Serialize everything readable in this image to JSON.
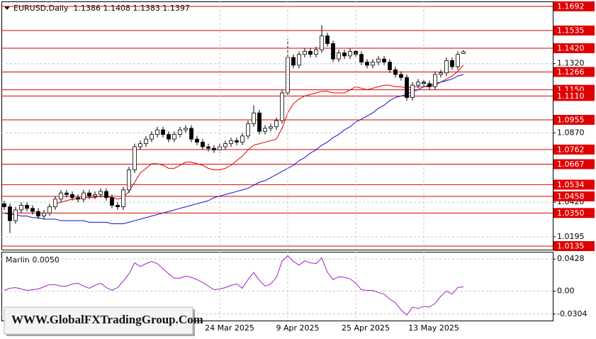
{
  "watermark": "WWW.GlobalFXTradingGroup.Com",
  "chart_data": [
    {
      "type": "candlestick",
      "title": "EURUSD,Daily  1.1386 1.1408 1.1383 1.1397",
      "open": [
        1.041,
        1.039,
        1.03,
        1.037,
        1.04,
        1.038,
        1.036,
        1.033,
        1.035,
        1.039,
        1.044,
        1.048,
        1.047,
        1.045,
        1.044,
        1.048,
        1.046,
        1.047,
        1.049,
        1.045,
        1.04,
        1.039,
        1.05,
        1.063,
        1.078,
        1.08,
        1.083,
        1.086,
        1.089,
        1.086,
        1.083,
        1.086,
        1.089,
        1.09,
        1.083,
        1.081,
        1.078,
        1.077,
        1.076,
        1.078,
        1.08,
        1.082,
        1.081,
        1.085,
        1.093,
        1.1,
        1.088,
        1.09,
        1.091,
        1.095,
        1.113,
        1.136,
        1.131,
        1.138,
        1.14,
        1.138,
        1.141,
        1.15,
        1.145,
        1.135,
        1.139,
        1.137,
        1.14,
        1.138,
        1.133,
        1.131,
        1.133,
        1.135,
        1.133,
        1.128,
        1.125,
        1.123,
        1.11,
        1.118,
        1.12,
        1.119,
        1.117,
        1.125,
        1.126,
        1.134,
        1.13,
        1.1386
      ],
      "high": [
        1.043,
        1.041,
        1.039,
        1.042,
        1.042,
        1.04,
        1.038,
        1.037,
        1.041,
        1.046,
        1.05,
        1.05,
        1.049,
        1.047,
        1.05,
        1.05,
        1.049,
        1.051,
        1.051,
        1.047,
        1.042,
        1.052,
        1.065,
        1.08,
        1.082,
        1.085,
        1.088,
        1.091,
        1.091,
        1.088,
        1.088,
        1.091,
        1.092,
        1.092,
        1.085,
        1.083,
        1.08,
        1.079,
        1.08,
        1.082,
        1.084,
        1.084,
        1.087,
        1.095,
        1.105,
        1.102,
        1.092,
        1.093,
        1.097,
        1.115,
        1.148,
        1.138,
        1.14,
        1.142,
        1.142,
        1.143,
        1.157,
        1.152,
        1.147,
        1.141,
        1.141,
        1.142,
        1.142,
        1.14,
        1.135,
        1.135,
        1.137,
        1.137,
        1.135,
        1.13,
        1.127,
        1.125,
        1.12,
        1.122,
        1.122,
        1.121,
        1.127,
        1.128,
        1.136,
        1.136,
        1.14,
        1.1408
      ],
      "low": [
        1.037,
        1.022,
        1.028,
        1.035,
        1.036,
        1.034,
        1.031,
        1.031,
        1.033,
        1.037,
        1.042,
        1.045,
        1.043,
        1.042,
        1.042,
        1.044,
        1.044,
        1.045,
        1.043,
        1.038,
        1.037,
        1.037,
        1.048,
        1.061,
        1.076,
        1.078,
        1.081,
        1.084,
        1.084,
        1.081,
        1.081,
        1.084,
        1.087,
        1.081,
        1.079,
        1.076,
        1.075,
        1.074,
        1.074,
        1.076,
        1.078,
        1.079,
        1.079,
        1.083,
        1.091,
        1.086,
        1.086,
        1.088,
        1.089,
        1.093,
        1.111,
        1.129,
        1.129,
        1.136,
        1.136,
        1.136,
        1.139,
        1.143,
        1.133,
        1.133,
        1.135,
        1.135,
        1.136,
        1.131,
        1.129,
        1.129,
        1.131,
        1.131,
        1.126,
        1.123,
        1.121,
        1.108,
        1.108,
        1.116,
        1.117,
        1.115,
        1.115,
        1.123,
        1.124,
        1.128,
        1.128,
        1.1383
      ],
      "close": [
        1.039,
        1.03,
        1.037,
        1.04,
        1.038,
        1.036,
        1.033,
        1.035,
        1.039,
        1.044,
        1.048,
        1.047,
        1.045,
        1.044,
        1.048,
        1.046,
        1.047,
        1.049,
        1.045,
        1.04,
        1.039,
        1.05,
        1.063,
        1.078,
        1.08,
        1.083,
        1.086,
        1.089,
        1.086,
        1.083,
        1.086,
        1.089,
        1.09,
        1.083,
        1.081,
        1.078,
        1.077,
        1.076,
        1.078,
        1.08,
        1.082,
        1.081,
        1.085,
        1.093,
        1.1,
        1.088,
        1.09,
        1.091,
        1.095,
        1.113,
        1.136,
        1.131,
        1.138,
        1.14,
        1.138,
        1.141,
        1.15,
        1.145,
        1.135,
        1.139,
        1.137,
        1.14,
        1.138,
        1.133,
        1.131,
        1.133,
        1.135,
        1.133,
        1.128,
        1.125,
        1.123,
        1.11,
        1.118,
        1.12,
        1.119,
        1.117,
        1.125,
        1.126,
        1.134,
        1.13,
        1.138,
        1.1397
      ],
      "up_color": "#ffffff",
      "down_color": "#000000",
      "series": [
        {
          "color": "#e00000",
          "values": [
            null,
            null,
            null,
            null,
            null,
            null,
            null,
            null,
            null,
            1.041,
            1.042,
            1.043,
            1.044,
            1.044,
            1.045,
            1.045,
            1.045,
            1.046,
            1.046,
            1.045,
            1.044,
            1.045,
            1.049,
            1.055,
            1.061,
            1.064,
            1.067,
            1.067,
            1.066,
            1.064,
            1.064,
            1.066,
            1.068,
            1.068,
            1.067,
            1.066,
            1.064,
            1.063,
            1.063,
            1.064,
            1.066,
            1.069,
            1.072,
            1.076,
            1.079,
            1.08,
            1.081,
            1.082,
            1.083,
            1.09,
            1.1,
            1.106,
            1.109,
            1.111,
            1.112,
            1.113,
            1.114,
            1.114,
            1.113,
            1.113,
            1.113,
            1.115,
            1.117,
            1.116,
            1.115,
            1.116,
            1.117,
            1.118,
            1.118,
            1.117,
            1.117,
            1.116,
            1.117,
            1.117,
            1.117,
            1.117,
            1.118,
            1.12,
            1.122,
            1.124,
            1.127,
            1.131
          ]
        },
        {
          "color": "#1010c8",
          "values": [
            1.035,
            1.034,
            1.034,
            1.033,
            1.033,
            1.032,
            1.032,
            1.031,
            1.031,
            1.031,
            1.03,
            1.03,
            1.03,
            1.03,
            1.03,
            1.029,
            1.029,
            1.029,
            1.029,
            1.028,
            1.028,
            1.028,
            1.029,
            1.03,
            1.031,
            1.032,
            1.033,
            1.034,
            1.035,
            1.036,
            1.037,
            1.038,
            1.039,
            1.04,
            1.041,
            1.042,
            1.043,
            1.045,
            1.046,
            1.047,
            1.048,
            1.049,
            1.05,
            1.051,
            1.053,
            1.055,
            1.056,
            1.058,
            1.06,
            1.062,
            1.064,
            1.066,
            1.069,
            1.071,
            1.074,
            1.076,
            1.079,
            1.081,
            1.084,
            1.086,
            1.089,
            1.091,
            1.094,
            1.096,
            1.098,
            1.1,
            1.103,
            1.105,
            1.108,
            1.11,
            1.111,
            1.112,
            1.114,
            1.115,
            1.117,
            1.118,
            1.119,
            1.12,
            1.121,
            1.122,
            1.124,
            1.125
          ]
        }
      ],
      "ylim": [
        1.0112,
        1.1724
      ],
      "yticks": [
        {
          "value": 1.132,
          "label": "1.1320"
        },
        {
          "value": 1.087,
          "label": "1.0870"
        },
        {
          "value": 1.042,
          "label": "1.0420"
        },
        1.0195
      ],
      "levels": [
        1.1692,
        1.1535,
        {
          "value": 1.142,
          "label": "1.1420"
        },
        1.1266,
        {
          "value": 1.115,
          "label": "1.1150"
        },
        {
          "value": 1.111,
          "label": "1.1110"
        },
        1.0955,
        1.0762,
        1.0667,
        1.0534,
        1.0458,
        {
          "value": 1.035,
          "label": "1.0350"
        },
        1.0135
      ],
      "level_color": "#e00000",
      "grid": true
    },
    {
      "type": "line",
      "title": "Marlin 0.0050",
      "categories": [
        null,
        null,
        null,
        null,
        null,
        null,
        null,
        null,
        null,
        null,
        null,
        null,
        null,
        null,
        null,
        null,
        null,
        null,
        null,
        null,
        null,
        null,
        null,
        null,
        null,
        null,
        null,
        null,
        null,
        null,
        null,
        null,
        null,
        null,
        null,
        null,
        null,
        null,
        "24 Mar 2025",
        null,
        null,
        null,
        null,
        null,
        null,
        null,
        null,
        null,
        null,
        null,
        "9 Apr 2025",
        null,
        null,
        null,
        null,
        null,
        null,
        null,
        null,
        null,
        null,
        null,
        "25 Apr 2025",
        null,
        null,
        null,
        null,
        null,
        null,
        null,
        null,
        null,
        null,
        null,
        "13 May 2025",
        null,
        null,
        null,
        null,
        null,
        null,
        null
      ],
      "values": [
        0.001,
        0.0039,
        0.0048,
        0.0029,
        0.001,
        0.0019,
        0.0029,
        0.0058,
        0.0087,
        0.0087,
        0.0067,
        0.0067,
        0.0096,
        0.0106,
        0.0067,
        0.0039,
        0.0077,
        0.0106,
        0.0048,
        0.001,
        0.0048,
        0.0135,
        0.0231,
        0.0376,
        0.0328,
        0.0366,
        0.0395,
        0.0366,
        0.0299,
        0.0231,
        0.0173,
        0.0173,
        0.0202,
        0.0183,
        0.0154,
        0.0116,
        0.0067,
        0.0019,
        0.0029,
        0.0048,
        0.0077,
        0.0096,
        0.0039,
        0.0154,
        0.025,
        0.0145,
        0.0067,
        0.0096,
        0.0183,
        0.0395,
        0.0472,
        0.0395,
        0.0347,
        0.0405,
        0.0376,
        0.0366,
        0.0443,
        0.025,
        0.0154,
        0.0193,
        0.0183,
        0.0164,
        0.0106,
        0.0019,
        0.001,
        0.001,
        -0.0019,
        -0.0039,
        -0.0106,
        -0.0154,
        -0.025,
        -0.0318,
        -0.0212,
        -0.0231,
        -0.0202,
        -0.0212,
        -0.0164,
        -0.0067,
        0,
        -0.0039,
        0.0048,
        0.0058
      ],
      "color": "#a020c0",
      "ylim": [
        -0.0391,
        0.0524
      ],
      "yticks": [
        0.0428,
        {
          "value": 0,
          "label": "0.00"
        },
        -0.0304
      ],
      "grid": true
    }
  ]
}
